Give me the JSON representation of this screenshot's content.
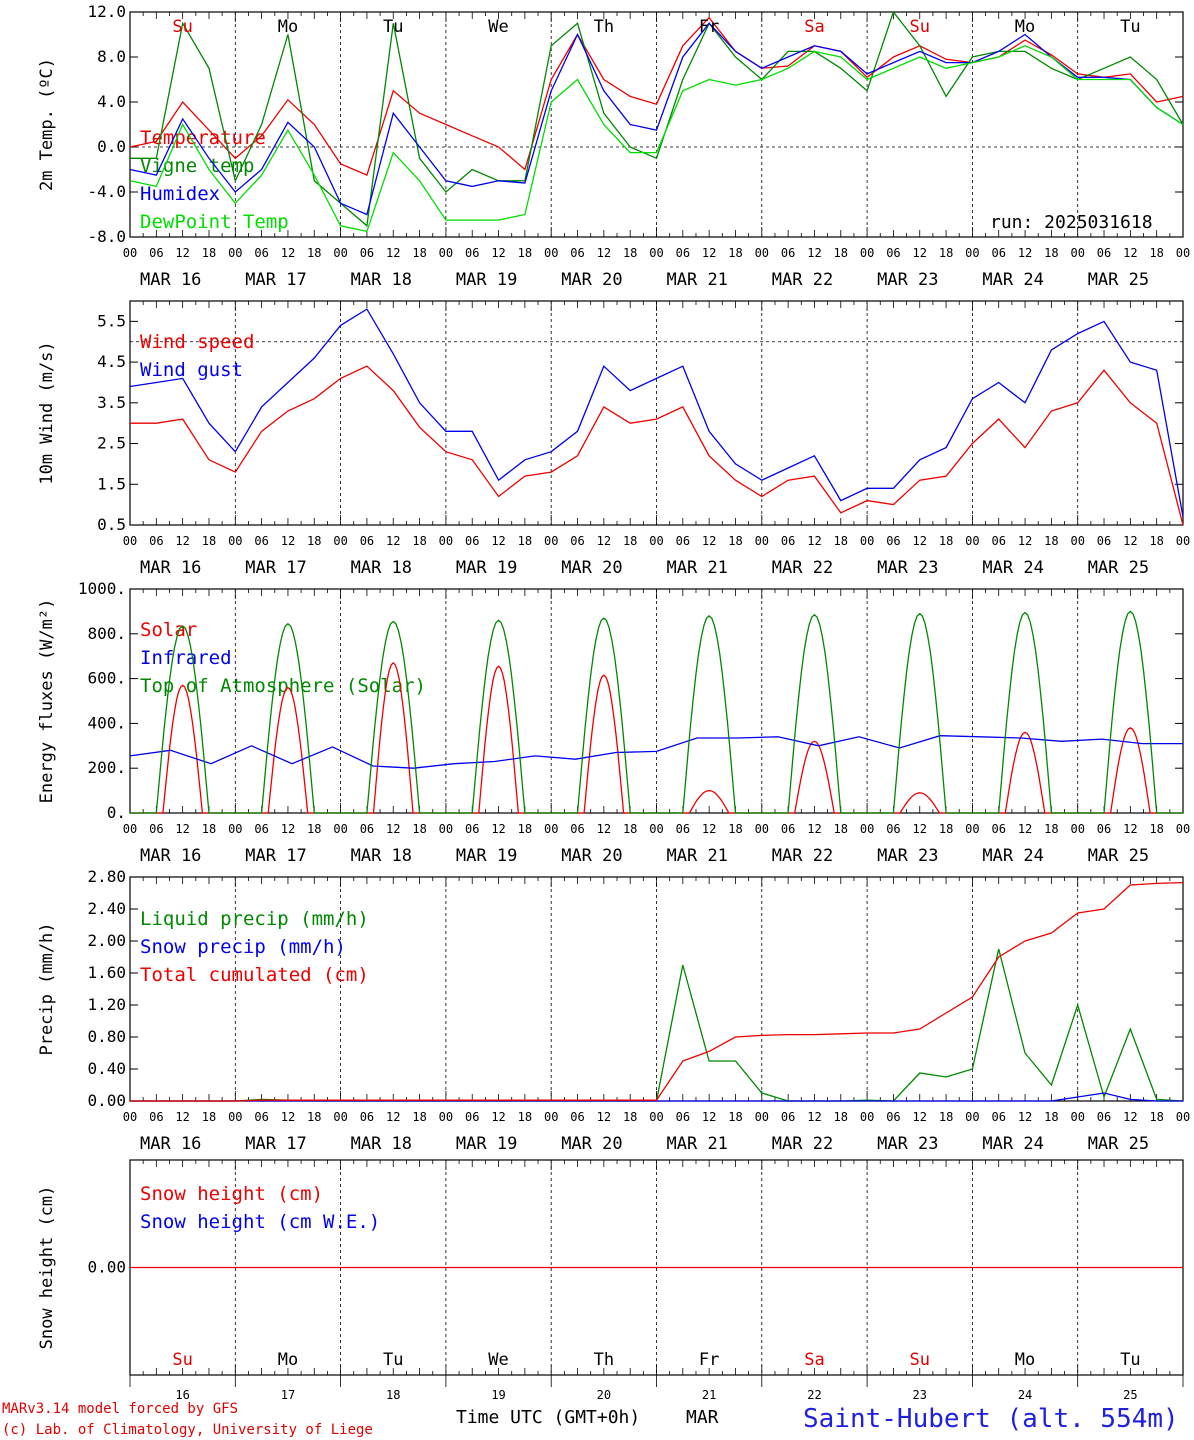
{
  "days": [
    "MAR 16",
    "MAR 17",
    "MAR 18",
    "MAR 19",
    "MAR 20",
    "MAR 21",
    "MAR 22",
    "MAR 23",
    "MAR 24",
    "MAR 25"
  ],
  "hour_ticks": [
    "00",
    "06",
    "12",
    "18"
  ],
  "day_names": [
    {
      "name": "Su",
      "color": "#e00000"
    },
    {
      "name": "Mo",
      "color": "#000000"
    },
    {
      "name": "Tu",
      "color": "#000000"
    },
    {
      "name": "We",
      "color": "#000000"
    },
    {
      "name": "Th",
      "color": "#000000"
    },
    {
      "name": "Fr",
      "color": "#000000"
    },
    {
      "name": "Sa",
      "color": "#e00000"
    },
    {
      "name": "Su",
      "color": "#e00000"
    },
    {
      "name": "Mo",
      "color": "#000000"
    },
    {
      "name": "Tu",
      "color": "#000000"
    }
  ],
  "day_numbers": [
    "16",
    "17",
    "18",
    "19",
    "20",
    "21",
    "22",
    "23",
    "24",
    "25"
  ],
  "run_label": "run: 2025031618",
  "footer": {
    "model": "MARv3.14 model forced by GFS",
    "credit": "(c) Lab. of Climatology, University of Liege",
    "time_axis": "Time UTC (GMT+0h)",
    "month": "MAR",
    "station": "Saint-Hubert (alt. 554m)"
  },
  "colors": {
    "red": "#ee0000",
    "green": "#008800",
    "blue": "#0000ee",
    "lightgreen": "#00dd00"
  },
  "chart_data": [
    {
      "type": "line",
      "ylabel": "2m Temp. (ºC)",
      "ylim": [
        -8,
        12
      ],
      "yticks": [
        "12.0",
        "8.0",
        "4.0",
        "0.0",
        "-4.0",
        "-8.0"
      ],
      "ytick_values": [
        12,
        8,
        4,
        0,
        -4,
        -8
      ],
      "ref_line": 0,
      "x_hours": [
        0,
        6,
        12,
        18,
        24,
        30,
        36,
        42,
        48,
        54,
        60,
        66,
        72,
        78,
        84,
        90,
        96,
        102,
        108,
        114,
        120,
        126,
        132,
        138,
        144,
        150,
        156,
        162,
        168,
        174,
        180,
        186,
        192,
        198,
        204,
        210,
        216,
        222,
        228,
        234,
        240
      ],
      "series": [
        {
          "name": "Temperature",
          "color": "red",
          "values": [
            0,
            0.5,
            4,
            1.5,
            -1,
            1,
            4.2,
            2,
            -1.5,
            -2.5,
            5,
            3,
            2,
            1,
            0,
            -2,
            6,
            10,
            6,
            4.5,
            3.8,
            9,
            11.5,
            8.5,
            7,
            7.2,
            9,
            8.5,
            6.2,
            8,
            9,
            7.8,
            7.5,
            8,
            9.5,
            8.2,
            6.5,
            6.2,
            6.5,
            4,
            4.5
          ]
        },
        {
          "name": "Vigne temp",
          "color": "green",
          "values": [
            -1,
            -1,
            11,
            7,
            -3,
            2,
            10,
            -3,
            -5,
            -7,
            11,
            -1,
            -4,
            -2,
            -3,
            -3,
            9,
            11,
            3,
            0,
            -1,
            6,
            11,
            8,
            6,
            8.5,
            8.5,
            7,
            5,
            12,
            9,
            4.5,
            8,
            8.5,
            8.5,
            7,
            6,
            7,
            8,
            6,
            2
          ]
        },
        {
          "name": "Humidex",
          "color": "blue",
          "values": [
            -2,
            -2.5,
            2.5,
            -1,
            -4,
            -2,
            2.2,
            0,
            -5,
            -6,
            3,
            0,
            -3,
            -3.5,
            -3,
            -3.2,
            5,
            10,
            5,
            2,
            1.5,
            8,
            11,
            8.5,
            7,
            8,
            9,
            8.5,
            6.5,
            7.5,
            8.5,
            7.5,
            7.5,
            8.5,
            10,
            8,
            6.2,
            6.2,
            6,
            3.5,
            2
          ]
        },
        {
          "name": "DewPoint Temp",
          "color": "lightgreen",
          "values": [
            -3,
            -3.5,
            2,
            -2,
            -5,
            -2.5,
            1.5,
            -2.5,
            -7,
            -7.5,
            -0.5,
            -3,
            -6.5,
            -6.5,
            -6.5,
            -6,
            4,
            6,
            2,
            -0.5,
            -0.5,
            5,
            6,
            5.5,
            6,
            7,
            8.5,
            8,
            6,
            7,
            8,
            7,
            7.5,
            8,
            9,
            8,
            6,
            6,
            6,
            3.5,
            2
          ]
        }
      ]
    },
    {
      "type": "line",
      "ylabel": "10m Wind (m/s)",
      "ylim": [
        0.5,
        6.0
      ],
      "yticks": [
        "5.5",
        "4.5",
        "3.5",
        "2.5",
        "1.5",
        "0.5"
      ],
      "ytick_values": [
        5.5,
        4.5,
        3.5,
        2.5,
        1.5,
        0.5
      ],
      "ref_line": 5,
      "x_hours": [
        0,
        6,
        12,
        18,
        24,
        30,
        36,
        42,
        48,
        54,
        60,
        66,
        72,
        78,
        84,
        90,
        96,
        102,
        108,
        114,
        120,
        126,
        132,
        138,
        144,
        150,
        156,
        162,
        168,
        174,
        180,
        186,
        192,
        198,
        204,
        210,
        216,
        222,
        228,
        234,
        240
      ],
      "series": [
        {
          "name": "Wind speed",
          "color": "red",
          "values": [
            3.0,
            3.0,
            3.1,
            2.1,
            1.8,
            2.8,
            3.3,
            3.6,
            4.1,
            4.4,
            3.8,
            2.9,
            2.3,
            2.1,
            1.2,
            1.7,
            1.8,
            2.2,
            3.4,
            3.0,
            3.1,
            3.4,
            2.2,
            1.6,
            1.2,
            1.6,
            1.7,
            0.8,
            1.1,
            1.0,
            1.6,
            1.7,
            2.5,
            3.1,
            2.4,
            3.3,
            3.5,
            4.3,
            3.5,
            3.0,
            0.5
          ]
        },
        {
          "name": "Wind gust",
          "color": "blue",
          "values": [
            3.9,
            4.0,
            4.1,
            3.0,
            2.3,
            3.4,
            4.0,
            4.6,
            5.4,
            5.8,
            4.7,
            3.5,
            2.8,
            2.8,
            1.6,
            2.1,
            2.3,
            2.8,
            4.4,
            3.8,
            4.1,
            4.4,
            2.8,
            2.0,
            1.6,
            1.9,
            2.2,
            1.1,
            1.4,
            1.4,
            2.1,
            2.4,
            3.6,
            4.0,
            3.5,
            4.8,
            5.2,
            5.5,
            4.5,
            4.3,
            0.7
          ]
        }
      ]
    },
    {
      "type": "line",
      "ylabel": "Energy fluxes (W/m²)",
      "ylim": [
        0,
        1000
      ],
      "yticks": [
        "1000.",
        "800.",
        "600.",
        "400.",
        "200.",
        "0."
      ],
      "ytick_values": [
        1000,
        800,
        600,
        400,
        200,
        0
      ],
      "series": [
        {
          "name": "Solar",
          "color": "red",
          "peaks": [
            570,
            560,
            670,
            655,
            615,
            100,
            320,
            90,
            360,
            380
          ]
        },
        {
          "name": "Infrared",
          "color": "blue",
          "values": [
            255,
            280,
            220,
            300,
            220,
            295,
            210,
            200,
            220,
            230,
            255,
            240,
            270,
            275,
            335,
            335,
            340,
            300,
            340,
            290,
            345,
            340,
            335,
            320,
            330,
            310,
            310
          ]
        },
        {
          "name": "Top of Atmosphere (Solar)",
          "color": "green",
          "peaks": [
            835,
            845,
            855,
            860,
            870,
            880,
            885,
            890,
            895,
            900
          ]
        }
      ]
    },
    {
      "type": "line",
      "ylabel": "Precip (mm/h)",
      "ylim": [
        0,
        2.8
      ],
      "yticks": [
        "2.80",
        "2.40",
        "2.00",
        "1.60",
        "1.20",
        "0.80",
        "0.40",
        "0.00"
      ],
      "ytick_values": [
        2.8,
        2.4,
        2.0,
        1.6,
        1.2,
        0.8,
        0.4,
        0.0
      ],
      "series": [
        {
          "name": "Liquid precip (mm/h)",
          "color": "green",
          "values": [
            0,
            0,
            0,
            0,
            0,
            0.02,
            0.01,
            0,
            0,
            0,
            0,
            0,
            0,
            0,
            0,
            0,
            0,
            0,
            0,
            0,
            0,
            1.7,
            0.5,
            0.5,
            0.1,
            0,
            0,
            0,
            0.01,
            0,
            0.35,
            0.3,
            0.4,
            1.9,
            0.6,
            0.2,
            1.2,
            0.05,
            0.9,
            0.02,
            0
          ]
        },
        {
          "name": "Snow precip (mm/h)",
          "color": "blue",
          "values": [
            0,
            0,
            0,
            0,
            0,
            0,
            0,
            0,
            0,
            0,
            0,
            0,
            0,
            0,
            0,
            0,
            0,
            0,
            0,
            0,
            0,
            0,
            0,
            0,
            0,
            0,
            0,
            0,
            0,
            0,
            0,
            0,
            0,
            0,
            0,
            0,
            0.05,
            0.1,
            0.02,
            0,
            0
          ]
        },
        {
          "name": "Total cumulated (cm)",
          "color": "red",
          "values": [
            0,
            0,
            0,
            0,
            0,
            0.01,
            0.01,
            0.01,
            0.01,
            0.01,
            0.01,
            0.01,
            0.01,
            0.01,
            0.01,
            0.01,
            0.01,
            0.01,
            0.01,
            0.01,
            0.01,
            0.5,
            0.62,
            0.8,
            0.82,
            0.83,
            0.83,
            0.84,
            0.85,
            0.85,
            0.9,
            1.1,
            1.3,
            1.8,
            2.0,
            2.1,
            2.35,
            2.4,
            2.7,
            2.72,
            2.73
          ]
        }
      ]
    },
    {
      "type": "line",
      "ylabel": "Snow height (cm)",
      "yticks": [
        "0.00"
      ],
      "ytick_values": [
        0
      ],
      "series": [
        {
          "name": "Snow height (cm)",
          "color": "red",
          "values": [
            0,
            0
          ]
        },
        {
          "name": "Snow height (cm W.E.)",
          "color": "blue",
          "values": [
            0,
            0
          ]
        }
      ]
    }
  ]
}
